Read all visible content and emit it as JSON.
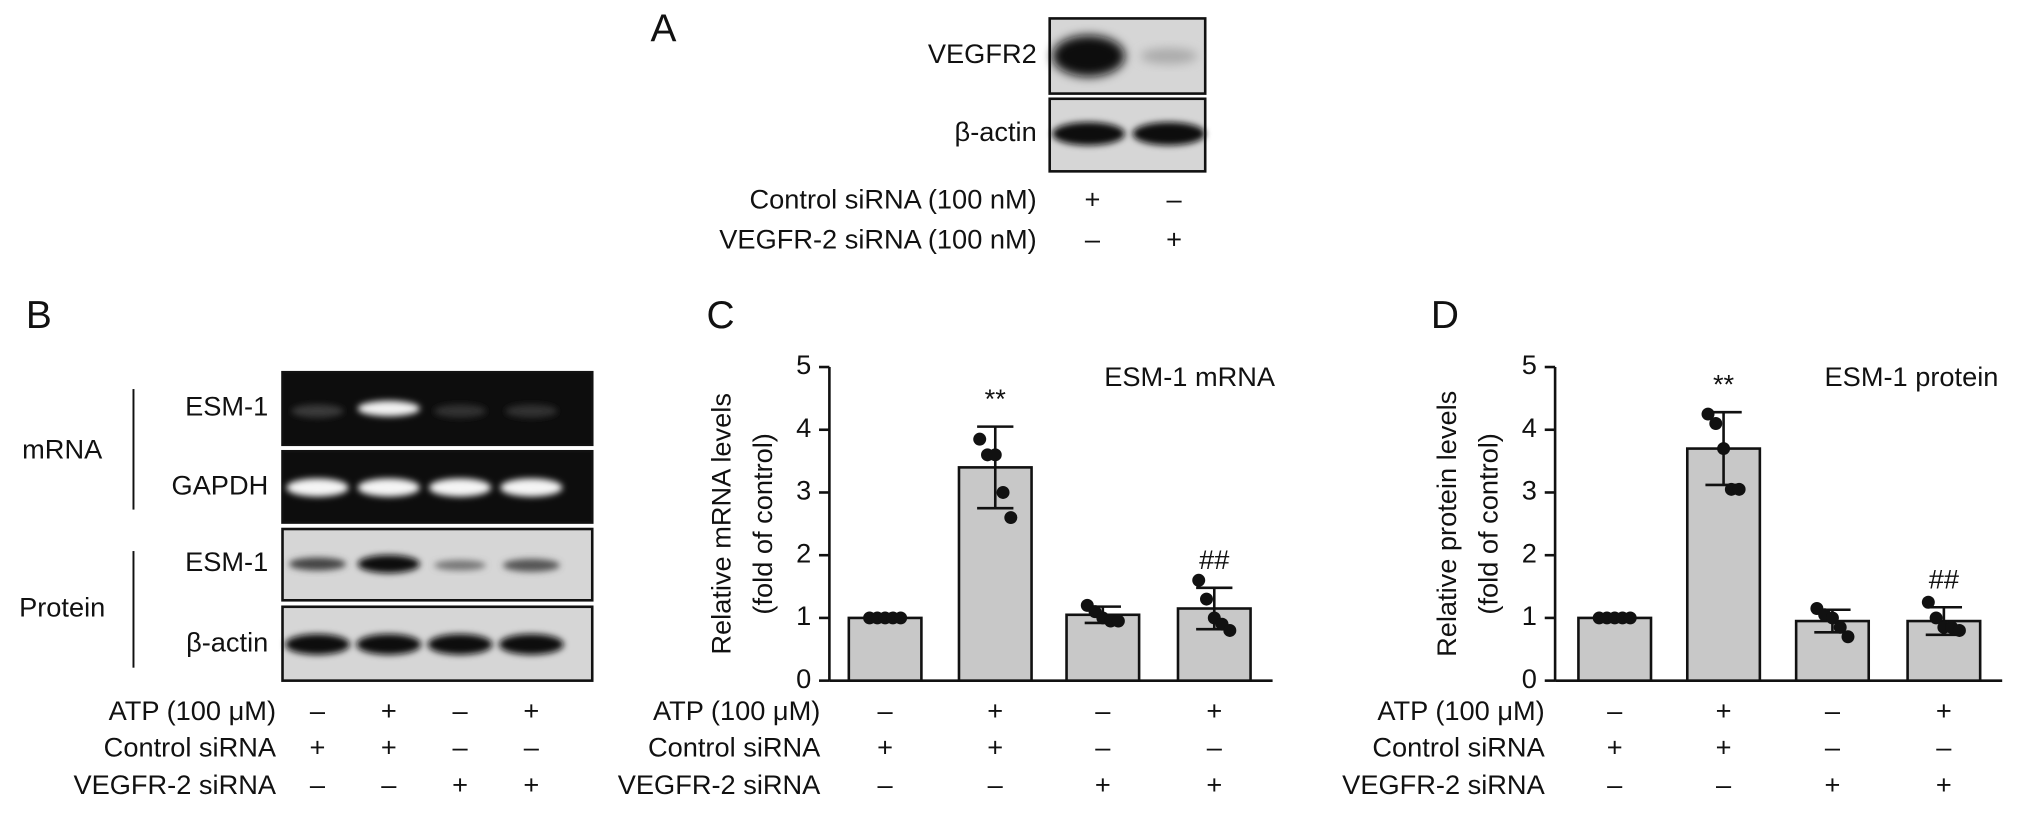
{
  "panel_a": {
    "label": "A",
    "bands": [
      "VEGFR2",
      "β-actin"
    ],
    "conditions": [
      {
        "name": "Control siRNA (100 nM)",
        "signs": [
          "+",
          "–"
        ]
      },
      {
        "name": "VEGFR-2 siRNA (100 nM)",
        "signs": [
          "–",
          "+"
        ]
      }
    ]
  },
  "panel_b": {
    "label": "B",
    "groups": [
      {
        "name": "mRNA",
        "bands": [
          "ESM-1",
          "GAPDH"
        ]
      },
      {
        "name": "Protein",
        "bands": [
          "ESM-1",
          "β-actin"
        ]
      }
    ],
    "conditions": [
      {
        "name": "ATP (100 μM)",
        "signs": [
          "–",
          "+",
          "–",
          "+"
        ]
      },
      {
        "name": "Control siRNA",
        "signs": [
          "+",
          "+",
          "–",
          "–"
        ]
      },
      {
        "name": "VEGFR-2 siRNA",
        "signs": [
          "–",
          "–",
          "+",
          "+"
        ]
      }
    ]
  },
  "chart_data": [
    {
      "type": "bar",
      "panel": "C",
      "title": "ESM-1 mRNA",
      "ylabel": [
        "Relative mRNA levels",
        "(fold of control)"
      ],
      "values": [
        1,
        3.4,
        1.05,
        1.15
      ],
      "errors": [
        0,
        0.65,
        0.13,
        0.33
      ],
      "points": [
        [
          1,
          1,
          1,
          1,
          1
        ],
        [
          3.85,
          3.6,
          3.6,
          3.0,
          2.6
        ],
        [
          1.2,
          1.1,
          1.0,
          0.95,
          0.95
        ],
        [
          1.6,
          1.3,
          1.0,
          0.9,
          0.8
        ]
      ],
      "annotations": [
        null,
        "**",
        null,
        "##"
      ],
      "color": "#c8c8c8",
      "ylim": [
        0,
        5
      ],
      "yticks": [
        0,
        1,
        2,
        3,
        4,
        5
      ],
      "conditions": [
        {
          "name": "ATP (100 μM)",
          "signs": [
            "–",
            "+",
            "–",
            "+"
          ]
        },
        {
          "name": "Control siRNA",
          "signs": [
            "+",
            "+",
            "–",
            "–"
          ]
        },
        {
          "name": "VEGFR-2 siRNA",
          "signs": [
            "–",
            "–",
            "+",
            "+"
          ]
        }
      ]
    },
    {
      "type": "bar",
      "panel": "D",
      "title": "ESM-1 protein",
      "ylabel": [
        "Relative protein levels",
        "(fold of control)"
      ],
      "values": [
        1,
        3.7,
        0.95,
        0.95
      ],
      "errors": [
        0,
        0.58,
        0.18,
        0.22
      ],
      "points": [
        [
          1,
          1,
          1,
          1,
          1
        ],
        [
          4.25,
          4.1,
          3.7,
          3.05,
          3.05
        ],
        [
          1.15,
          1.05,
          1.0,
          0.85,
          0.7
        ],
        [
          1.25,
          1.0,
          0.85,
          0.85,
          0.8
        ]
      ],
      "annotations": [
        null,
        "**",
        null,
        "##"
      ],
      "color": "#c8c8c8",
      "ylim": [
        0,
        5
      ],
      "yticks": [
        0,
        1,
        2,
        3,
        4,
        5
      ],
      "conditions": [
        {
          "name": "ATP (100 μM)",
          "signs": [
            "–",
            "+",
            "–",
            "+"
          ]
        },
        {
          "name": "Control siRNA",
          "signs": [
            "+",
            "+",
            "–",
            "–"
          ]
        },
        {
          "name": "VEGFR-2 siRNA",
          "signs": [
            "–",
            "–",
            "+",
            "+"
          ]
        }
      ]
    }
  ]
}
